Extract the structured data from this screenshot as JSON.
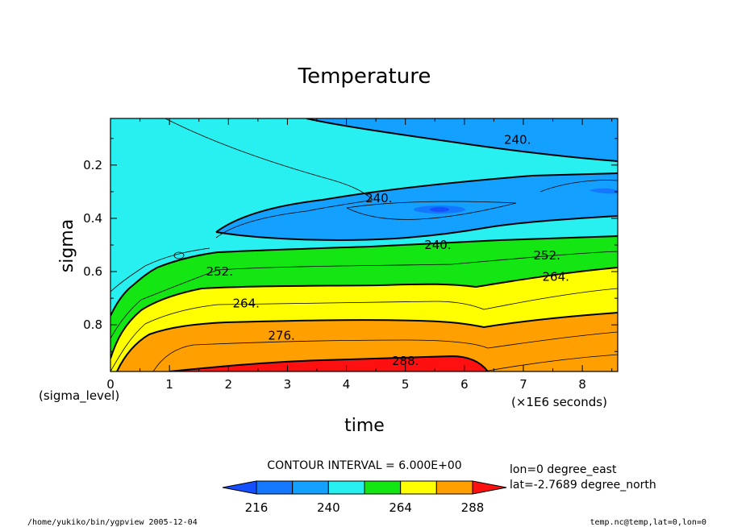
{
  "chart_data": {
    "type": "contour",
    "title": "Temperature",
    "xlabel": "time",
    "ylabel": "sigma",
    "x_unit_note": "(×1E6 seconds)",
    "y_axis_note": "(sigma_level)",
    "xlim": [
      0,
      8.6
    ],
    "ylim": [
      0.975,
      0.025
    ],
    "x_ticks": [
      0,
      1,
      2,
      3,
      4,
      5,
      6,
      7,
      8
    ],
    "x_tick_labels": [
      "0",
      "1",
      "2",
      "3",
      "4",
      "5",
      "6",
      "7",
      "8"
    ],
    "y_ticks": [
      0.2,
      0.4,
      0.6,
      0.8
    ],
    "y_tick_labels": [
      "0.2",
      "0.4",
      "0.6",
      "0.8"
    ],
    "contour_interval": 6.0,
    "contour_interval_text": "CONTOUR INTERVAL = 6.000E+00",
    "contour_labels": [
      {
        "text": "240.",
        "x": 6.9,
        "y": 0.105
      },
      {
        "text": "240.",
        "x": 4.55,
        "y": 0.325
      },
      {
        "text": "240.",
        "x": 5.55,
        "y": 0.5
      },
      {
        "text": "252.",
        "x": 7.4,
        "y": 0.54
      },
      {
        "text": "252.",
        "x": 1.85,
        "y": 0.6
      },
      {
        "text": "264.",
        "x": 7.55,
        "y": 0.62
      },
      {
        "text": "264.",
        "x": 2.3,
        "y": 0.72
      },
      {
        "text": "276.",
        "x": 2.9,
        "y": 0.84
      },
      {
        "text": "288.",
        "x": 5.0,
        "y": 0.935
      }
    ],
    "color_levels": [
      {
        "range": "<216",
        "color": "#1450ff"
      },
      {
        "range": "216-228",
        "color": "#1478ff"
      },
      {
        "range": "228-240",
        "color": "#14a0ff"
      },
      {
        "range": "240-252",
        "color": "#28f0f0"
      },
      {
        "range": "252-264",
        "color": "#14e614"
      },
      {
        "range": "264-276",
        "color": "#ffff00"
      },
      {
        "range": "276-288",
        "color": "#ffa000"
      },
      {
        "range": ">288",
        "color": "#ff1010"
      }
    ],
    "colorbar_labels": [
      "216",
      "240",
      "264",
      "288"
    ],
    "legend_position": "bottom"
  },
  "info": {
    "lon_line": "lon=0 degree_east",
    "lat_line": "lat=-2.7689 degree_north"
  },
  "footer": {
    "left": "/home/yukiko/bin/ygpview  2005-12-04",
    "right": "temp.nc@temp,lat=0,lon=0"
  }
}
